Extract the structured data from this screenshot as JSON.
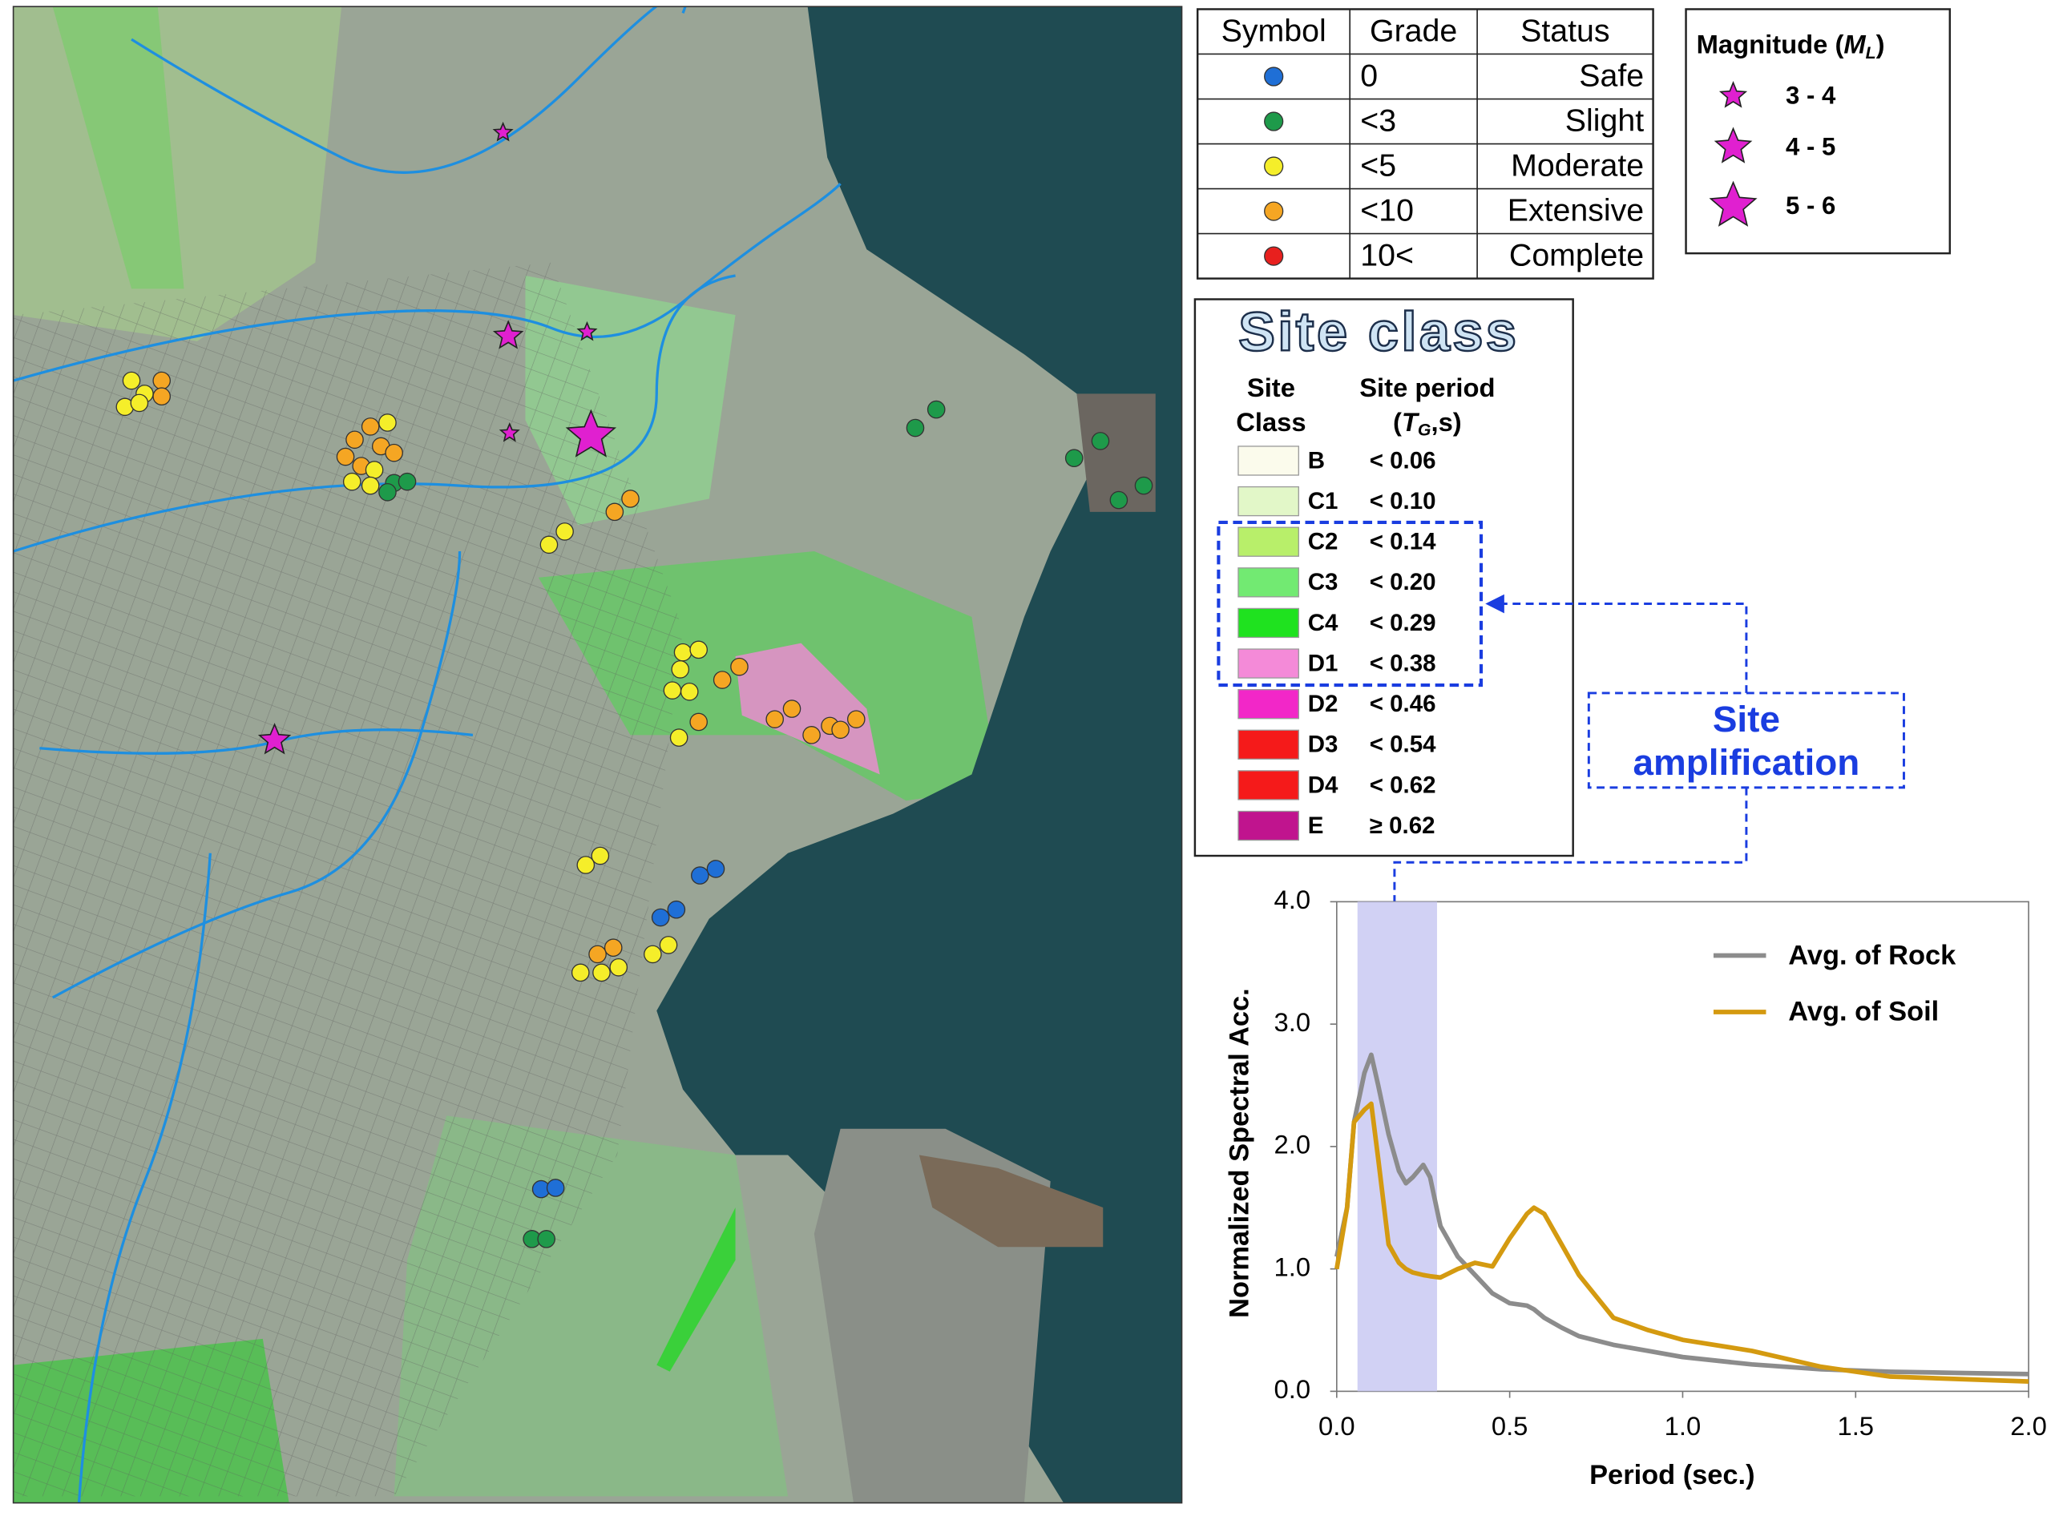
{
  "damage_legend": {
    "headers": [
      "Symbol",
      "Grade",
      "Status"
    ],
    "rows": [
      {
        "grade": "0",
        "status": "Safe",
        "color": "#1f6fd6"
      },
      {
        "grade": "<3",
        "status": "Slight",
        "color": "#1e9a4a"
      },
      {
        "grade": "<5",
        "status": "Moderate",
        "color": "#f5ee2a"
      },
      {
        "grade": "<10",
        "status": "Extensive",
        "color": "#f5a623"
      },
      {
        "grade": "10<",
        "status": "Complete",
        "color": "#e8201e"
      }
    ]
  },
  "magnitude_legend": {
    "title_parts": [
      "Magnitude (",
      "M",
      "L",
      ")"
    ],
    "color": "#e020d0",
    "items": [
      "3 - 4",
      "4 - 5",
      "5 - 6"
    ]
  },
  "site_class_legend": {
    "title": "Site class",
    "class_header": [
      "Site",
      "Class"
    ],
    "period_header": [
      "Site period",
      "(",
      "T",
      "G",
      ",s)"
    ],
    "rows": [
      {
        "class": "B",
        "period": "< 0.06",
        "color": "#fbfbec"
      },
      {
        "class": "C1",
        "period": "< 0.10",
        "color": "#e2f7c8"
      },
      {
        "class": "C2",
        "period": "< 0.14",
        "color": "#b8ef6a"
      },
      {
        "class": "C3",
        "period": "< 0.20",
        "color": "#72ea72"
      },
      {
        "class": "C4",
        "period": "< 0.29",
        "color": "#1fe21f"
      },
      {
        "class": "D1",
        "period": "< 0.38",
        "color": "#f48ad8"
      },
      {
        "class": "D2",
        "period": "< 0.46",
        "color": "#f227c8"
      },
      {
        "class": "D3",
        "period": "< 0.54",
        "color": "#f51a1a"
      },
      {
        "class": "D4",
        "period": "< 0.62",
        "color": "#f51a1a"
      },
      {
        "class": "E",
        "period": "≥ 0.62",
        "color": "#c0148e"
      }
    ]
  },
  "annotation": [
    "Site",
    "amplification"
  ],
  "chart_data": {
    "type": "line",
    "xlabel": "Period (sec.)",
    "ylabel": "Normalized  Spectral Acc.",
    "xlim": [
      0,
      2
    ],
    "ylim": [
      0,
      4
    ],
    "xticks": [
      {
        "value": 0,
        "label": "0.0"
      },
      0.5,
      {
        "value": 1,
        "label": "1.0"
      },
      1.5,
      {
        "value": 2,
        "label": "2.0"
      }
    ],
    "yticks": [
      {
        "value": 0,
        "label": "0.0"
      },
      {
        "value": 1,
        "label": "1.0"
      },
      {
        "value": 2,
        "label": "2.0"
      },
      {
        "value": 3,
        "label": "3.0"
      },
      {
        "value": 4,
        "label": "4.0"
      }
    ],
    "highlight_band": [
      0.06,
      0.29
    ],
    "x": [
      0,
      0.03,
      0.05,
      0.08,
      0.1,
      0.12,
      0.15,
      0.18,
      0.2,
      0.22,
      0.25,
      0.27,
      0.3,
      0.35,
      0.4,
      0.45,
      0.5,
      0.55,
      0.57,
      0.6,
      0.65,
      0.7,
      0.8,
      0.9,
      1.0,
      1.2,
      1.4,
      1.6,
      1.8,
      2.0
    ],
    "series": [
      {
        "name": "Avg. of Rock",
        "color": "#8c8c8c",
        "values": [
          1.1,
          1.5,
          2.2,
          2.6,
          2.75,
          2.5,
          2.1,
          1.8,
          1.7,
          1.75,
          1.85,
          1.75,
          1.35,
          1.1,
          0.95,
          0.8,
          0.72,
          0.7,
          0.67,
          0.6,
          0.52,
          0.45,
          0.38,
          0.33,
          0.28,
          0.22,
          0.18,
          0.16,
          0.15,
          0.14
        ]
      },
      {
        "name": "Avg. of Soil",
        "color": "#d49a10",
        "values": [
          1.0,
          1.5,
          2.2,
          2.3,
          2.35,
          1.9,
          1.2,
          1.05,
          1.0,
          0.97,
          0.95,
          0.94,
          0.93,
          1.0,
          1.05,
          1.02,
          1.25,
          1.45,
          1.5,
          1.45,
          1.2,
          0.95,
          0.6,
          0.5,
          0.42,
          0.33,
          0.2,
          0.12,
          0.1,
          0.08
        ]
      }
    ]
  }
}
